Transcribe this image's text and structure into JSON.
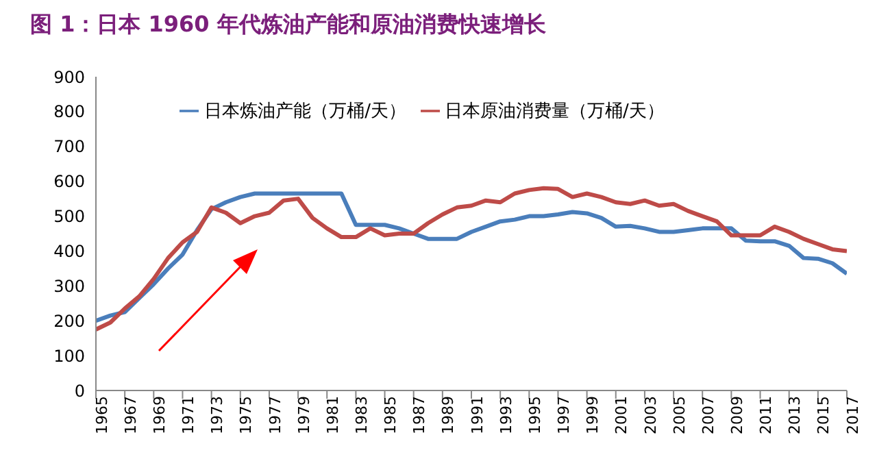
{
  "chart_data": {
    "type": "line",
    "title": "图 1：日本 1960 年代炼油产能和原油消费快速增长",
    "x": [
      1965,
      1966,
      1967,
      1968,
      1969,
      1970,
      1971,
      1972,
      1973,
      1974,
      1975,
      1976,
      1977,
      1978,
      1979,
      1980,
      1981,
      1982,
      1983,
      1984,
      1985,
      1986,
      1987,
      1988,
      1989,
      1990,
      1991,
      1992,
      1993,
      1994,
      1995,
      1996,
      1997,
      1998,
      1999,
      2000,
      2001,
      2002,
      2003,
      2004,
      2005,
      2006,
      2007,
      2008,
      2009,
      2010,
      2011,
      2012,
      2013,
      2014,
      2015,
      2016,
      2017
    ],
    "series": [
      {
        "name": "日本炼油产能（万桶/天）",
        "color": "#4a7ebb",
        "values": [
          200,
          215,
          225,
          265,
          305,
          350,
          390,
          460,
          520,
          540,
          555,
          565,
          565,
          565,
          565,
          565,
          565,
          565,
          475,
          475,
          475,
          465,
          450,
          435,
          435,
          435,
          455,
          470,
          485,
          490,
          500,
          500,
          505,
          512,
          508,
          495,
          470,
          472,
          465,
          455,
          455,
          460,
          465,
          465,
          465,
          430,
          428,
          428,
          415,
          380,
          378,
          365,
          335
        ]
      },
      {
        "name": "日本原油消费量（万桶/天）",
        "color": "#be4b48",
        "values": [
          175,
          195,
          235,
          270,
          320,
          380,
          425,
          455,
          525,
          510,
          480,
          500,
          510,
          545,
          550,
          495,
          465,
          440,
          440,
          465,
          445,
          450,
          450,
          480,
          505,
          525,
          530,
          545,
          540,
          565,
          575,
          580,
          578,
          555,
          565,
          555,
          540,
          535,
          545,
          530,
          535,
          515,
          500,
          485,
          445,
          445,
          445,
          470,
          455,
          435,
          420,
          405,
          400
        ]
      }
    ],
    "xlim": [
      1965,
      2017
    ],
    "xticks": [
      1965,
      1967,
      1969,
      1971,
      1973,
      1975,
      1977,
      1979,
      1981,
      1983,
      1985,
      1987,
      1989,
      1991,
      1993,
      1995,
      1997,
      1999,
      2001,
      2003,
      2005,
      2007,
      2009,
      2011,
      2013,
      2015,
      2017
    ],
    "ylim": [
      0,
      900
    ],
    "yticks": [
      0,
      100,
      200,
      300,
      400,
      500,
      600,
      700,
      800,
      900
    ],
    "legend": "top",
    "marker": "none",
    "line_style": "solid"
  }
}
